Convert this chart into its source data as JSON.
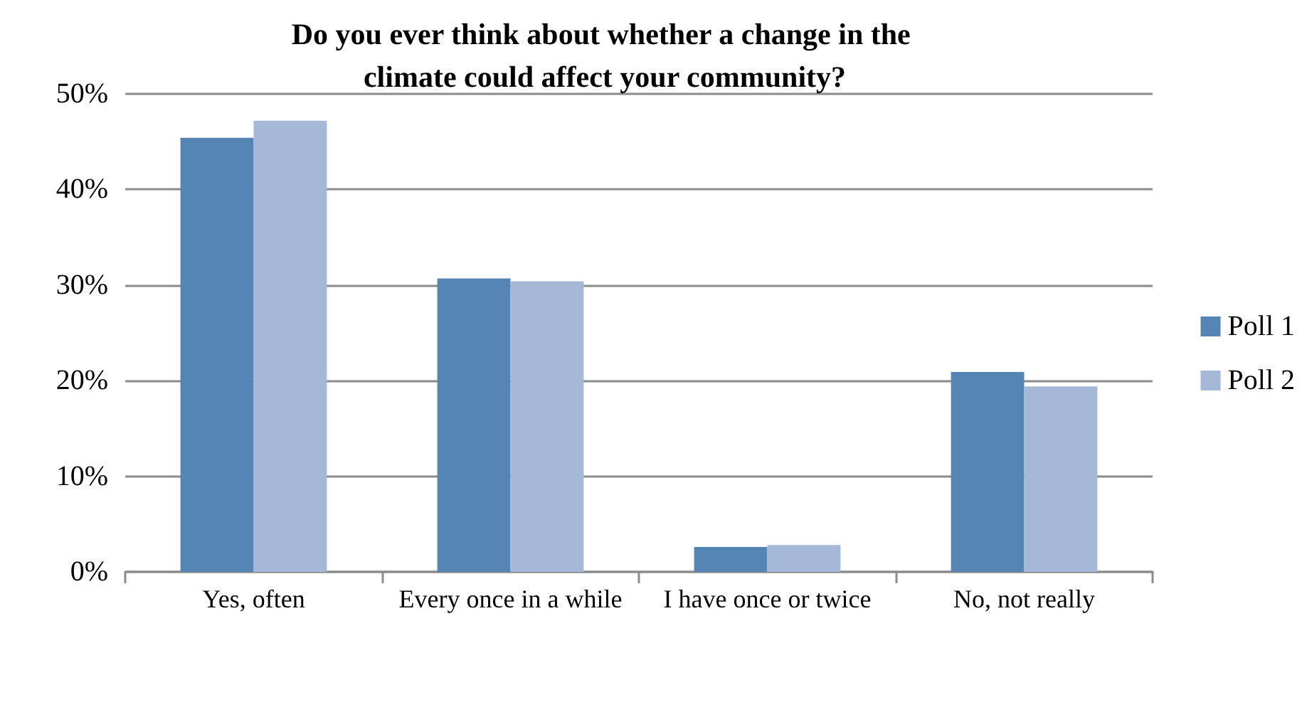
{
  "chart_data": {
    "type": "bar",
    "title": "Do you ever think about whether a change in the climate could affect your community?",
    "categories": [
      "Yes, often",
      "Every once in a while",
      "I have once or twice",
      "No, not really"
    ],
    "series": [
      {
        "name": "Poll 1",
        "color": "#5585b5",
        "values": [
          45.4,
          30.7,
          2.6,
          20.9
        ]
      },
      {
        "name": "Poll 2",
        "color": "#a5b8d8",
        "values": [
          47.2,
          30.4,
          2.8,
          19.4
        ]
      }
    ],
    "ylim": [
      0,
      50
    ],
    "yticks": [
      {
        "value": 0,
        "label": "0%"
      },
      {
        "value": 10,
        "label": "10%"
      },
      {
        "value": 20,
        "label": "20%"
      },
      {
        "value": 30,
        "label": "30%"
      },
      {
        "value": 40,
        "label": "40%"
      },
      {
        "value": 50,
        "label": "50%"
      }
    ],
    "grid": "y",
    "legend": "right"
  }
}
